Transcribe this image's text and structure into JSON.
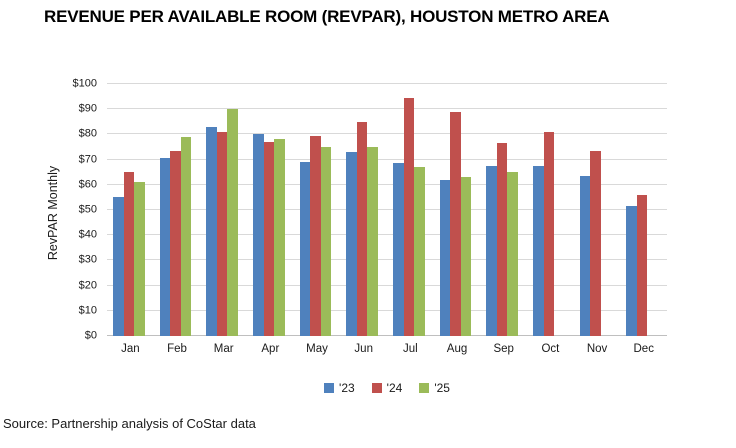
{
  "source_note": "Source: Partnership analysis of CoStar data",
  "colors": {
    "series_23": "#4F81BD",
    "series_24": "#C0504D",
    "series_25": "#9BBB59",
    "gridline": "#D9D9D9",
    "axis_line": "#BFBFBF"
  },
  "chart_data": {
    "type": "bar",
    "title": "REVENUE PER AVAILABLE ROOM (REVPAR), HOUSTON METRO AREA",
    "ylabel": "RevPAR Monthly",
    "xlabel": "",
    "categories": [
      "Jan",
      "Feb",
      "Mar",
      "Apr",
      "May",
      "Jun",
      "Jul",
      "Aug",
      "Sep",
      "Oct",
      "Nov",
      "Dec"
    ],
    "series": [
      {
        "name": "'23",
        "color": "#4F81BD",
        "values": [
          55,
          70.5,
          83,
          80,
          69,
          73,
          68.5,
          62,
          67.5,
          67.5,
          63.5,
          51.5
        ]
      },
      {
        "name": "'24",
        "color": "#C0504D",
        "values": [
          65,
          73.5,
          81,
          77,
          79.5,
          85,
          94.5,
          89,
          76.5,
          81,
          73.5,
          56
        ]
      },
      {
        "name": "'25",
        "color": "#9BBB59",
        "values": [
          61,
          79,
          90,
          78,
          75,
          75,
          67,
          63,
          65,
          null,
          null,
          null
        ]
      }
    ],
    "ylim": [
      0,
      100
    ],
    "ytick_step": 10,
    "ytick_prefix": "$",
    "grid": true,
    "legend_position": "bottom"
  }
}
